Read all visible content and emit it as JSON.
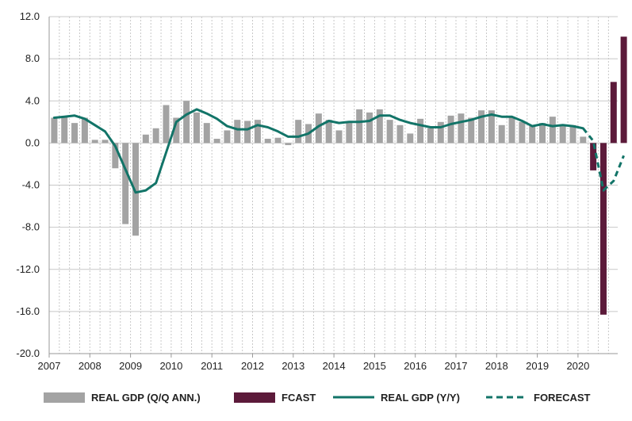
{
  "colors": {
    "bar_actual": "#a3a3a3",
    "bar_fcast": "#5c1a3a",
    "line": "#127468",
    "grid": "#c8c8c8",
    "axis": "#9a9a9a"
  },
  "chart_data": {
    "type": "bar",
    "ylim": [
      -20,
      12
    ],
    "y_ticks": [
      "12.0",
      "8.0",
      "4.0",
      "0.0",
      "-4.0",
      "-8.0",
      "-12.0",
      "-16.0",
      "-20.0"
    ],
    "y_tick_values": [
      12,
      8,
      4,
      0,
      -4,
      -8,
      -12,
      -16,
      -20
    ],
    "x_tick_labels": [
      "2007",
      "2008",
      "2009",
      "2010",
      "2011",
      "2012",
      "2013",
      "2014",
      "2015",
      "2016",
      "2017",
      "2018",
      "2019",
      "2020"
    ],
    "grid": true,
    "legend_position": "bottom",
    "legend": [
      {
        "label": "REAL GDP (Q/Q ANN.)",
        "kind": "bar",
        "color": "#a3a3a3"
      },
      {
        "label": "FCAST",
        "kind": "bar",
        "color": "#5c1a3a"
      },
      {
        "label": "REAL GDP (Y/Y)",
        "kind": "line",
        "color": "#127468"
      },
      {
        "label": "FORECAST",
        "kind": "dashed-line",
        "color": "#127468"
      }
    ],
    "quarters_per_year": 4,
    "start_year": 2007,
    "series": [
      {
        "name": "REAL GDP (Q/Q ANN.)",
        "kind": "bar",
        "values": [
          2.4,
          2.5,
          1.9,
          2.4,
          0.3,
          0.3,
          -2.4,
          -7.7,
          -8.8,
          0.8,
          1.4,
          3.6,
          2.4,
          4.0,
          2.9,
          1.9,
          0.4,
          1.2,
          2.2,
          2.1,
          2.2,
          0.4,
          0.5,
          -0.2,
          2.2,
          1.8,
          2.8,
          2.2,
          1.2,
          1.9,
          3.2,
          2.9,
          3.2,
          2.2,
          1.7,
          0.9,
          2.3,
          1.4,
          2.0,
          2.6,
          2.8,
          2.4,
          3.1,
          3.1,
          1.7,
          2.5,
          2.0,
          1.6,
          1.9,
          2.5,
          1.6,
          1.7,
          0.6
        ]
      },
      {
        "name": "FCAST",
        "kind": "bar",
        "start_index": 53,
        "values": [
          -2.6,
          -16.3,
          5.8,
          10.1
        ]
      },
      {
        "name": "REAL GDP (Y/Y)",
        "kind": "line",
        "values": [
          2.4,
          2.5,
          2.6,
          2.3,
          1.7,
          1.1,
          -0.3,
          -2.5,
          -4.7,
          -4.5,
          -3.8,
          -0.9,
          2.0,
          2.7,
          3.2,
          2.8,
          2.3,
          1.6,
          1.3,
          1.3,
          1.7,
          1.5,
          1.1,
          0.6,
          0.6,
          0.9,
          1.6,
          2.1,
          1.9,
          2.0,
          2.0,
          2.1,
          2.6,
          2.6,
          2.2,
          1.9,
          1.7,
          1.5,
          1.5,
          1.8,
          2.0,
          2.2,
          2.5,
          2.7,
          2.5,
          2.5,
          2.1,
          1.6,
          1.8,
          1.6,
          1.7,
          1.6,
          1.4
        ]
      },
      {
        "name": "FORECAST",
        "kind": "dashed-line",
        "start_index": 52,
        "values": [
          1.4,
          0.2,
          -4.5,
          -3.6,
          -1.2
        ]
      }
    ]
  }
}
